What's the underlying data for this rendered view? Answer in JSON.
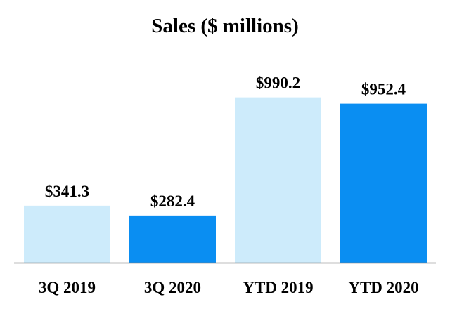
{
  "chart_data": {
    "type": "bar",
    "title": "Sales ($ millions)",
    "xlabel": "",
    "ylabel": "",
    "categories": [
      "3Q 2019",
      "3Q 2020",
      "YTD 2019",
      "YTD 2020"
    ],
    "values": [
      341.3,
      282.4,
      990.2,
      952.4
    ],
    "data_labels": [
      "$341.3",
      "$282.4",
      "$990.2",
      "$952.4"
    ],
    "ylim": [
      0,
      1000
    ],
    "grid": false,
    "legend": "none",
    "colors": {
      "prior_period": "#cdebfb",
      "current_period": "#0a8ef2",
      "axis": "#7f7f7f"
    },
    "bar_colors": [
      "#cdebfb",
      "#0a8ef2",
      "#cdebfb",
      "#0a8ef2"
    ]
  }
}
